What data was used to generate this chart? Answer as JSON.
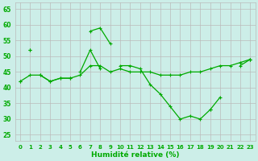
{
  "xlabel": "Humidité relative (%)",
  "xlim": [
    -0.5,
    23.5
  ],
  "ylim": [
    23,
    67
  ],
  "yticks": [
    25,
    30,
    35,
    40,
    45,
    50,
    55,
    60,
    65
  ],
  "xticks": [
    0,
    1,
    2,
    3,
    4,
    5,
    6,
    7,
    8,
    9,
    10,
    11,
    12,
    13,
    14,
    15,
    16,
    17,
    18,
    19,
    20,
    21,
    22,
    23
  ],
  "bg_color": "#cceee8",
  "grid_color": "#bbbbbb",
  "line_color": "#00aa00",
  "line1": [
    42,
    null,
    44,
    42,
    43,
    43,
    null,
    58,
    59,
    54,
    null,
    null,
    null,
    null,
    null,
    null,
    null,
    null,
    null,
    null,
    null,
    null,
    null,
    null
  ],
  "line2": [
    null,
    52,
    null,
    null,
    null,
    null,
    45,
    52,
    46,
    null,
    47,
    47,
    46,
    41,
    38,
    34,
    30,
    31,
    30,
    33,
    37,
    null,
    47,
    49
  ],
  "line3": [
    42,
    44,
    44,
    42,
    43,
    43,
    44,
    47,
    47,
    45,
    46,
    45,
    45,
    45,
    44,
    44,
    44,
    45,
    45,
    46,
    47,
    47,
    48,
    49
  ],
  "line4": [
    null,
    52,
    null,
    null,
    null,
    null,
    null,
    null,
    null,
    null,
    null,
    null,
    null,
    null,
    null,
    null,
    null,
    null,
    null,
    null,
    null,
    null,
    null,
    49
  ]
}
